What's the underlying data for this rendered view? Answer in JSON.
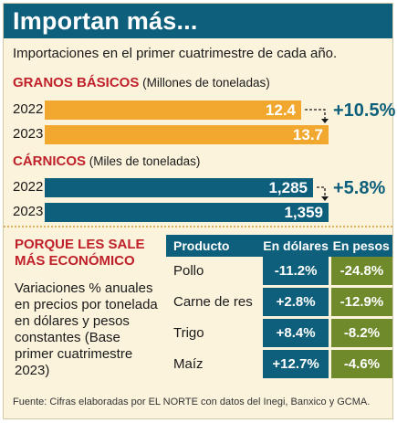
{
  "header": {
    "title": "Importan más..."
  },
  "subtitle": "Importaciones en el primer cuatrimestre de cada año.",
  "chart_data": [
    {
      "type": "bar",
      "title": "GRANOS BÁSICOS",
      "unit_label": "(Millones de toneladas)",
      "categories": [
        "2022",
        "2023"
      ],
      "values": [
        12.4,
        13.7
      ],
      "value_labels": [
        "12.4",
        "13.7"
      ],
      "change_label": "+10.5%",
      "color": "#f2a72e"
    },
    {
      "type": "bar",
      "title": "CÁRNICOS",
      "unit_label": "(Miles de toneladas)",
      "categories": [
        "2022",
        "2023"
      ],
      "values": [
        1285,
        1359
      ],
      "value_labels": [
        "1,285",
        "1,359"
      ],
      "change_label": "+5.8%",
      "color": "#0d5f7b"
    },
    {
      "type": "table",
      "columns": [
        "Producto",
        "En dólares",
        "En pesos"
      ],
      "rows": [
        [
          "Pollo",
          "-11.2%",
          "-24.8%"
        ],
        [
          "Carne de res",
          "+2.8%",
          "-12.9%"
        ],
        [
          "Trigo",
          "+8.4%",
          "-8.2%"
        ],
        [
          "Maíz",
          "+12.7%",
          "-4.6%"
        ]
      ]
    }
  ],
  "side": {
    "title_line1": "PORQUE LES SALE",
    "title_line2": "MÁS ECONÓMICO",
    "text": "Variaciones % anuales en precios por tonelada en dólares y pesos constantes (Base primer cuatrimestre 2023)"
  },
  "source": "Fuente: Cifras elaboradas por EL NORTE con datos del Inegi, Banxico y GCMA.",
  "colors": {
    "header": "#0d5f7b",
    "accent_red": "#c0202a",
    "orange": "#f2a72e",
    "olive": "#6f8a2b",
    "background": "#fbf3dc"
  }
}
